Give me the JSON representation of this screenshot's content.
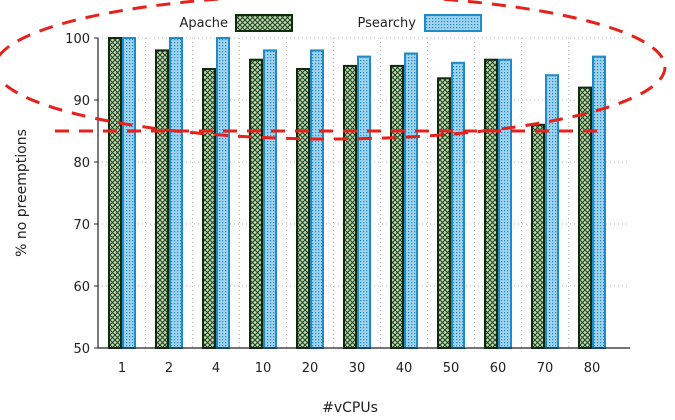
{
  "chart_data": {
    "type": "bar",
    "xlabel": "#vCPUs",
    "ylabel": "% no preemptions",
    "categories": [
      "1",
      "2",
      "4",
      "10",
      "20",
      "30",
      "40",
      "50",
      "60",
      "70",
      "80"
    ],
    "ylim": [
      50,
      100
    ],
    "yticks": [
      "50",
      "60",
      "70",
      "80",
      "90",
      "100"
    ],
    "grid": "dotted",
    "legend_position": "top",
    "series": [
      {
        "name": "Apache",
        "values": [
          100,
          98,
          95,
          96.5,
          95,
          95.5,
          95.5,
          93.5,
          96.5,
          86,
          92
        ],
        "fill_pattern": "crosshatch",
        "color": "#1a4a16",
        "pattern_bg": "#c9d6c0"
      },
      {
        "name": "Psearchy",
        "values": [
          100,
          100,
          100,
          98,
          98,
          97,
          97.5,
          96,
          96.5,
          94,
          97
        ],
        "fill_pattern": "fine-dots",
        "color": "#1f8bc8",
        "pattern_bg": "#9fd2ee"
      }
    ],
    "annotations": [
      {
        "type": "dashed-ellipse",
        "color": "#e8201c",
        "range": [
          90,
          100
        ]
      },
      {
        "type": "dashed-hline",
        "color": "#e8201c",
        "y": 85
      }
    ]
  }
}
